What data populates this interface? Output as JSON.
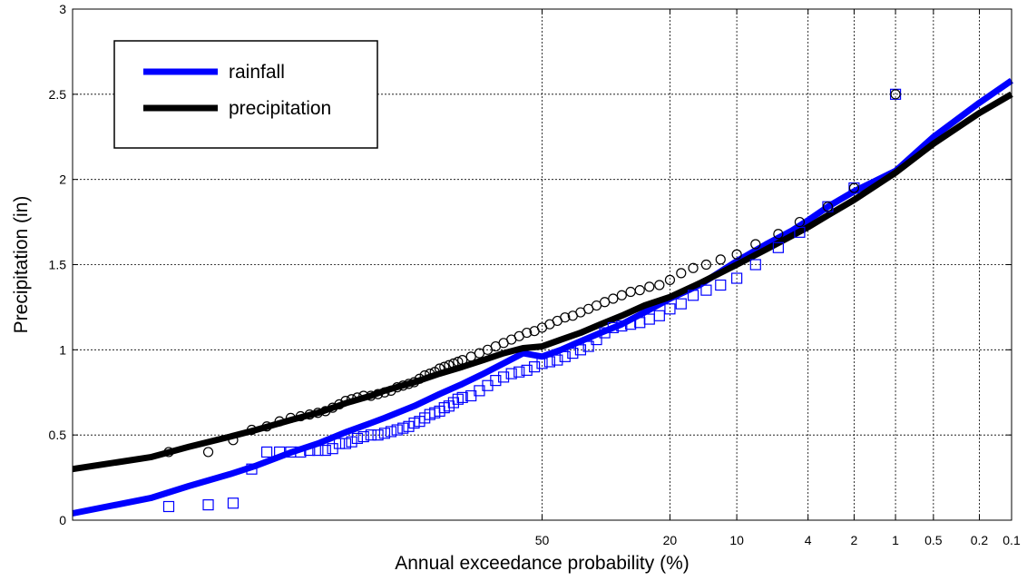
{
  "chart_data": {
    "type": "scatter",
    "title": "",
    "xlabel": "Annual exceedance probability (%)",
    "ylabel": "Precipitation (in)",
    "x_scale": "normal-probability (reversed)",
    "xlim": [
      99.9,
      0.1
    ],
    "ylim": [
      0,
      3
    ],
    "grid": true,
    "legend_position": "top-left",
    "x_ticks": [
      {
        "value": 50,
        "label": "50"
      },
      {
        "value": 20,
        "label": "20"
      },
      {
        "value": 10,
        "label": "10"
      },
      {
        "value": 4,
        "label": "4"
      },
      {
        "value": 2,
        "label": "2"
      },
      {
        "value": 1,
        "label": "1"
      },
      {
        "value": 0.5,
        "label": "0.5"
      },
      {
        "value": 0.2,
        "label": "0.2"
      },
      {
        "value": 0.1,
        "label": "0.1"
      }
    ],
    "y_ticks": [
      {
        "value": 0,
        "label": "0"
      },
      {
        "value": 0.5,
        "label": "0.5"
      },
      {
        "value": 1,
        "label": "1"
      },
      {
        "value": 1.5,
        "label": "1.5"
      },
      {
        "value": 2,
        "label": "2"
      },
      {
        "value": 2.5,
        "label": "2.5"
      },
      {
        "value": 3,
        "label": "3"
      }
    ],
    "series": [
      {
        "name": "rainfall",
        "kind": "fitted line",
        "color": "#0000ff",
        "x": [
          99.9,
          99.5,
          99,
          98,
          97,
          95,
          93,
          90,
          87,
          85,
          80,
          75,
          70,
          65,
          60,
          55,
          50,
          45,
          40,
          35,
          30,
          25,
          20,
          15,
          10,
          7,
          5,
          4,
          3,
          2,
          1,
          0.5,
          0.2,
          0.1
        ],
        "y": [
          0.04,
          0.13,
          0.2,
          0.27,
          0.32,
          0.4,
          0.45,
          0.52,
          0.57,
          0.6,
          0.67,
          0.74,
          0.8,
          0.86,
          0.92,
          0.98,
          0.96,
          1.0,
          1.05,
          1.1,
          1.15,
          1.22,
          1.3,
          1.38,
          1.52,
          1.62,
          1.7,
          1.76,
          1.84,
          1.93,
          2.05,
          2.25,
          2.45,
          2.58
        ]
      },
      {
        "name": "precipitation",
        "kind": "fitted line",
        "color": "#000000",
        "x": [
          99.9,
          99.5,
          99,
          98,
          97,
          95,
          93,
          90,
          87,
          85,
          80,
          75,
          70,
          65,
          60,
          55,
          50,
          45,
          40,
          35,
          30,
          25,
          20,
          15,
          10,
          7,
          5,
          4,
          3,
          2,
          1,
          0.5,
          0.2,
          0.1
        ],
        "y": [
          0.3,
          0.37,
          0.43,
          0.49,
          0.53,
          0.59,
          0.63,
          0.69,
          0.73,
          0.76,
          0.81,
          0.86,
          0.9,
          0.94,
          0.98,
          1.01,
          1.02,
          1.06,
          1.1,
          1.15,
          1.2,
          1.26,
          1.31,
          1.39,
          1.5,
          1.59,
          1.67,
          1.72,
          1.79,
          1.88,
          2.04,
          2.21,
          2.39,
          2.5
        ]
      },
      {
        "name": "rainfall observations",
        "kind": "markers",
        "marker": "square",
        "color": "#0000ff",
        "x": [
          99.3,
          98.6,
          97.9,
          97.2,
          96.5,
          95.8,
          95.1,
          94.4,
          93.7,
          93,
          92.3,
          91.6,
          90.9,
          90.2,
          89.5,
          88.8,
          88,
          87,
          86,
          85,
          84,
          83,
          82,
          81,
          80,
          79,
          78,
          77,
          76,
          75,
          74,
          73,
          72,
          71,
          70,
          68,
          66,
          64,
          62,
          60,
          58,
          56,
          54,
          52,
          50,
          48,
          46,
          44,
          42,
          40,
          38,
          36,
          34,
          32,
          30,
          28,
          26,
          24,
          22,
          20,
          18,
          16,
          14,
          12,
          10,
          8,
          6,
          4.5,
          3,
          2,
          1
        ],
        "y": [
          0.08,
          0.09,
          0.1,
          0.3,
          0.4,
          0.4,
          0.4,
          0.4,
          0.41,
          0.41,
          0.41,
          0.42,
          0.45,
          0.45,
          0.46,
          0.48,
          0.49,
          0.5,
          0.5,
          0.51,
          0.52,
          0.53,
          0.54,
          0.55,
          0.57,
          0.58,
          0.6,
          0.62,
          0.63,
          0.64,
          0.66,
          0.67,
          0.69,
          0.71,
          0.72,
          0.73,
          0.76,
          0.79,
          0.82,
          0.84,
          0.86,
          0.87,
          0.88,
          0.9,
          0.92,
          0.93,
          0.94,
          0.96,
          0.98,
          1.0,
          1.02,
          1.06,
          1.1,
          1.13,
          1.14,
          1.15,
          1.16,
          1.18,
          1.2,
          1.24,
          1.27,
          1.32,
          1.35,
          1.38,
          1.42,
          1.5,
          1.6,
          1.69,
          1.84,
          1.95,
          2.5
        ]
      },
      {
        "name": "precipitation observations",
        "kind": "markers",
        "marker": "circle",
        "color": "#000000",
        "x": [
          99.3,
          98.6,
          97.9,
          97.2,
          96.5,
          95.8,
          95.1,
          94.4,
          93.7,
          93,
          92.3,
          91.6,
          90.9,
          90.2,
          89.5,
          88.8,
          88,
          87,
          86,
          85,
          84,
          83,
          82,
          81,
          80,
          79,
          78,
          77,
          76,
          75,
          74,
          73,
          72,
          71,
          70,
          68,
          66,
          64,
          62,
          60,
          58,
          56,
          54,
          52,
          50,
          48,
          46,
          44,
          42,
          40,
          38,
          36,
          34,
          32,
          30,
          28,
          26,
          24,
          22,
          20,
          18,
          16,
          14,
          12,
          10,
          8,
          6,
          4.5,
          3,
          2,
          1
        ],
        "y": [
          0.4,
          0.4,
          0.47,
          0.53,
          0.55,
          0.58,
          0.6,
          0.61,
          0.62,
          0.63,
          0.64,
          0.66,
          0.68,
          0.7,
          0.71,
          0.72,
          0.73,
          0.73,
          0.74,
          0.75,
          0.76,
          0.78,
          0.79,
          0.8,
          0.81,
          0.83,
          0.85,
          0.86,
          0.87,
          0.89,
          0.9,
          0.91,
          0.92,
          0.93,
          0.94,
          0.96,
          0.98,
          1.0,
          1.02,
          1.04,
          1.06,
          1.08,
          1.1,
          1.11,
          1.13,
          1.15,
          1.17,
          1.19,
          1.2,
          1.22,
          1.24,
          1.26,
          1.28,
          1.3,
          1.32,
          1.34,
          1.35,
          1.37,
          1.38,
          1.41,
          1.45,
          1.48,
          1.5,
          1.53,
          1.56,
          1.62,
          1.68,
          1.75,
          1.84,
          1.95,
          2.5
        ]
      }
    ],
    "legend": [
      {
        "label": "rainfall",
        "color": "#0000ff"
      },
      {
        "label": "precipitation",
        "color": "#000000"
      }
    ]
  }
}
